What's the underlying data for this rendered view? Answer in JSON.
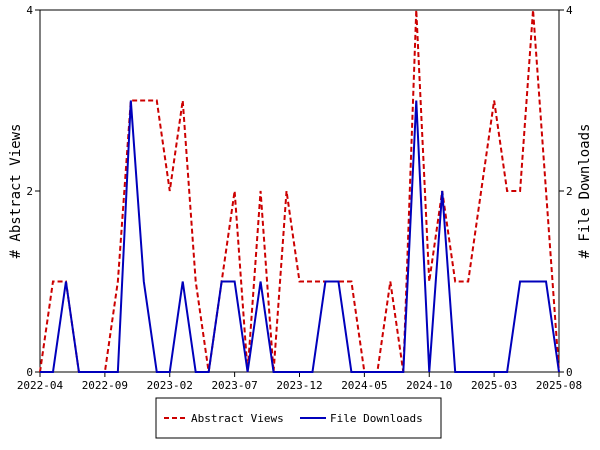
{
  "chart_data": {
    "type": "line",
    "title": "",
    "ylabel_left": "# Abstract Views",
    "ylabel_right": "# File Downloads",
    "ylim_left": [
      0,
      4
    ],
    "ylim_right": [
      0,
      4
    ],
    "yticks_left": [
      "0",
      "2",
      "4"
    ],
    "yticks_right": [
      "0",
      "2",
      "4"
    ],
    "xtick_labels": [
      "2022-04",
      "2022-09",
      "2023-02",
      "2023-07",
      "2023-12",
      "2024-05",
      "2024-10",
      "2025-03",
      "2025-08"
    ],
    "x": [
      "2022-04",
      "2022-05",
      "2022-06",
      "2022-07",
      "2022-08",
      "2022-09",
      "2022-10",
      "2022-11",
      "2022-12",
      "2023-01",
      "2023-02",
      "2023-03",
      "2023-04",
      "2023-05",
      "2023-06",
      "2023-07",
      "2023-08",
      "2023-09",
      "2023-10",
      "2023-11",
      "2023-12",
      "2024-01",
      "2024-02",
      "2024-03",
      "2024-04",
      "2024-05",
      "2024-06",
      "2024-07",
      "2024-08",
      "2024-09",
      "2024-10",
      "2024-11",
      "2024-12",
      "2025-01",
      "2025-02",
      "2025-03",
      "2025-04",
      "2025-05",
      "2025-06",
      "2025-07",
      "2025-08"
    ],
    "legend_position": "bottom",
    "series": [
      {
        "name": "Abstract Views",
        "color": "#cc0000",
        "style": "dashed",
        "axis": "left",
        "values": [
          0,
          1,
          1,
          0,
          0,
          0,
          1,
          3,
          3,
          3,
          2,
          3,
          1,
          0,
          1,
          2,
          0,
          2,
          0,
          2,
          1,
          1,
          1,
          1,
          1,
          0,
          0,
          1,
          0,
          4,
          1,
          2,
          1,
          1,
          2,
          3,
          2,
          2,
          4,
          2,
          0
        ]
      },
      {
        "name": "File Downloads",
        "color": "#0000bb",
        "style": "solid",
        "axis": "right",
        "values": [
          0,
          0,
          1,
          0,
          0,
          0,
          0,
          3,
          1,
          0,
          0,
          1,
          0,
          0,
          1,
          1,
          0,
          1,
          0,
          0,
          0,
          0,
          1,
          1,
          0,
          0,
          0,
          0,
          0,
          3,
          0,
          2,
          0,
          0,
          0,
          0,
          0,
          1,
          1,
          1,
          0
        ]
      }
    ]
  }
}
